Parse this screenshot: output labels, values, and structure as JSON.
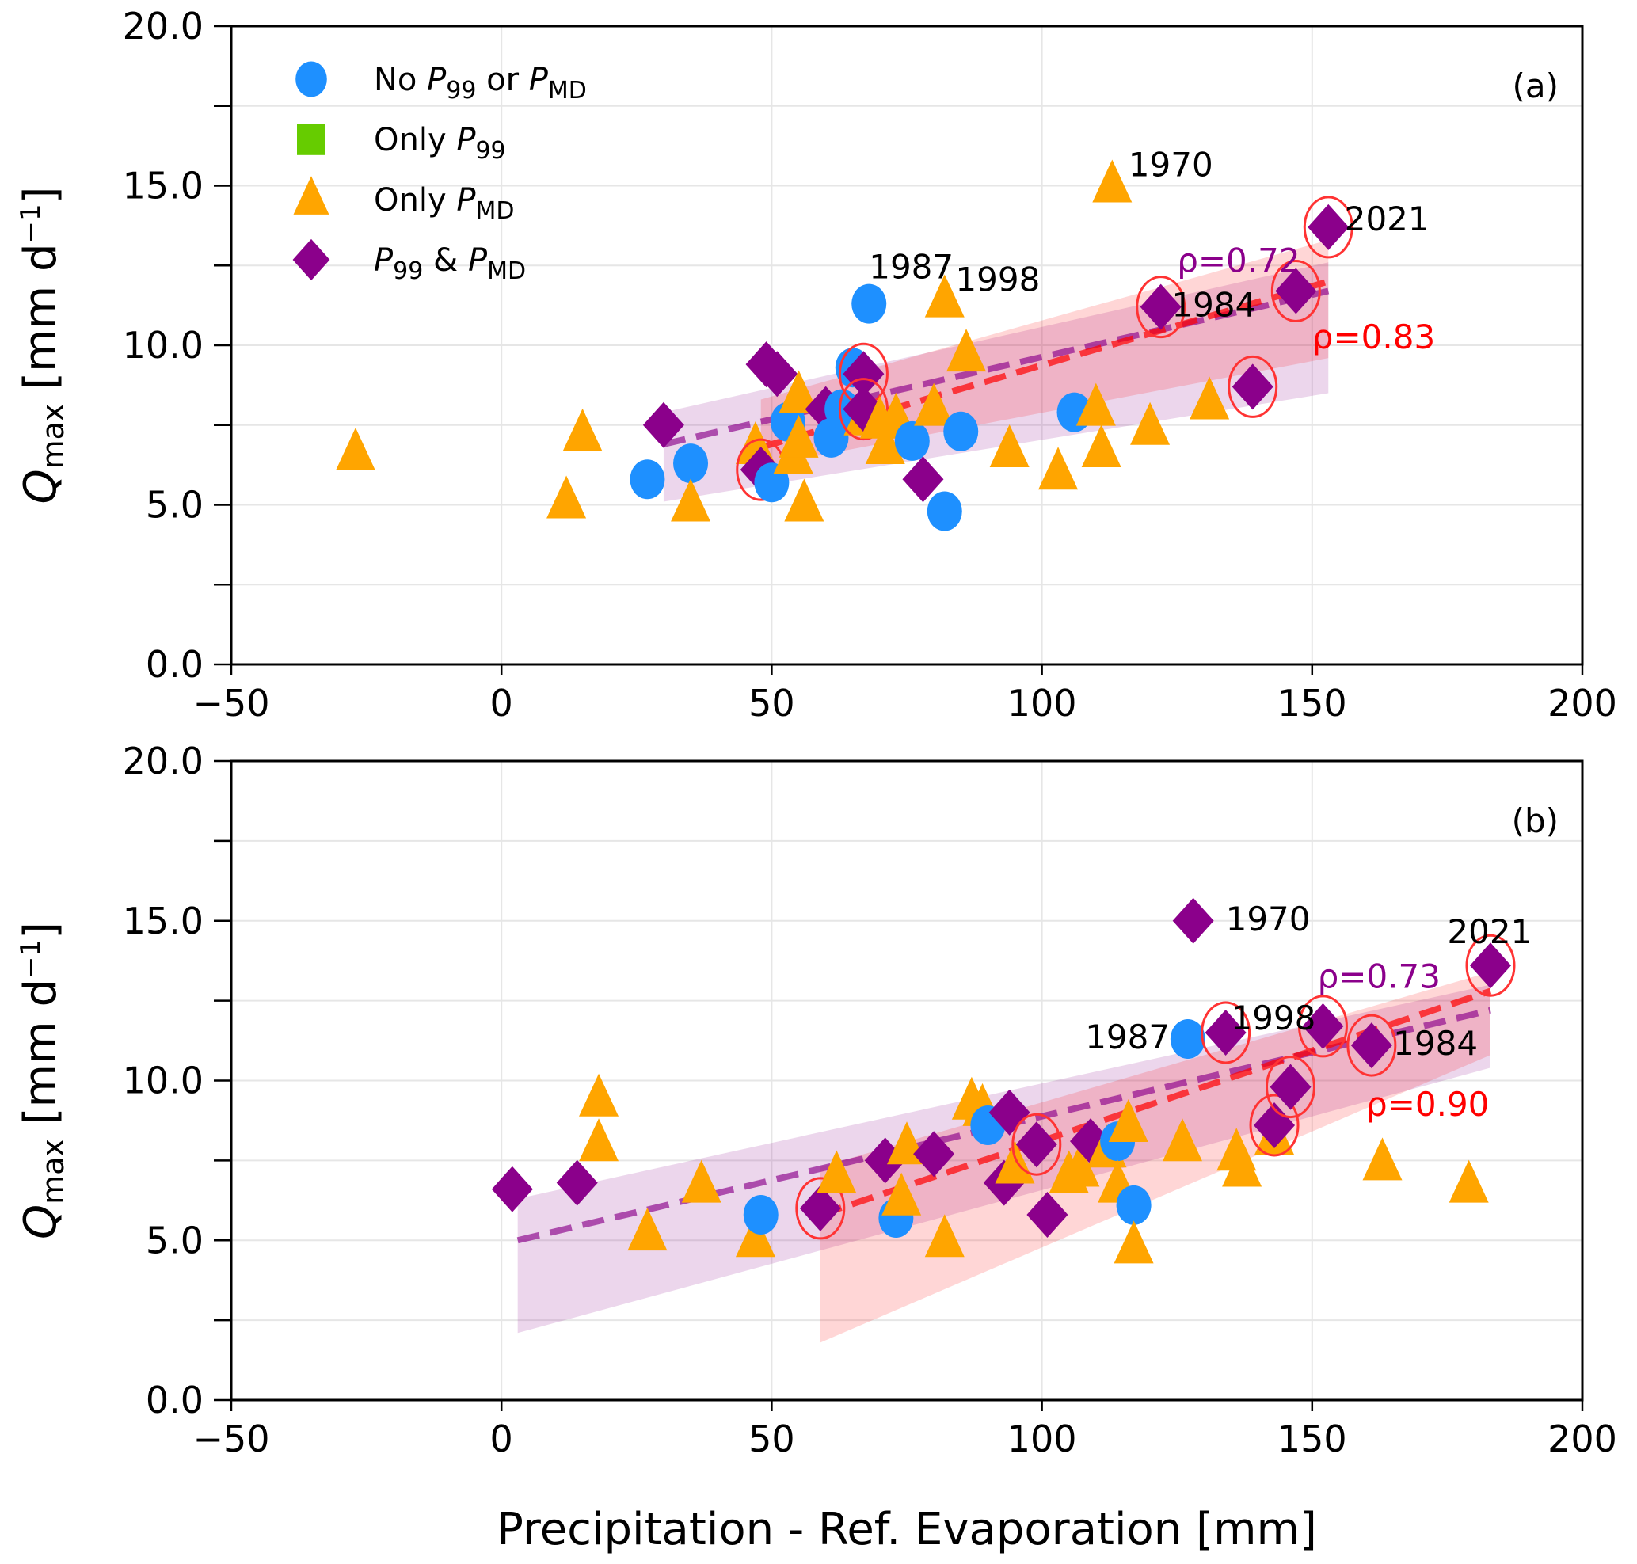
{
  "chart_data": {
    "type": "scatter",
    "xlabel": "Precipitation - Ref. Evaporation [mm]",
    "ylabel": "Q_max [mm d^-1]",
    "xlim": [
      -50,
      200
    ],
    "ylim": [
      0,
      20
    ],
    "xticks": [
      "−50",
      "0",
      "50",
      "100",
      "150",
      "200"
    ],
    "xtick_values": [
      -50,
      0,
      50,
      100,
      150,
      200
    ],
    "yticks": [
      "0.0",
      "5.0",
      "10.0",
      "15.0",
      "20.0"
    ],
    "ytick_values": [
      0,
      5,
      10,
      15,
      20
    ],
    "yminor_values": [
      2.5,
      7.5,
      12.5,
      17.5
    ],
    "grid": true,
    "legend": {
      "placement": "top-left",
      "entries": [
        {
          "key": "none",
          "marker": "circle",
          "color": "#1e90ff",
          "text": "No ",
          "sym1": "P",
          "sub1": "99",
          "mid": " or ",
          "sym2": "P",
          "sub2": "MD"
        },
        {
          "key": "p99",
          "marker": "square",
          "color": "#66cc00",
          "text": "Only ",
          "sym1": "P",
          "sub1": "99",
          "mid": "",
          "sym2": "",
          "sub2": ""
        },
        {
          "key": "pmd",
          "marker": "triangle",
          "color": "#ffa500",
          "text": "Only ",
          "sym1": "P",
          "sub1": "MD",
          "mid": "",
          "sym2": "",
          "sub2": ""
        },
        {
          "key": "both",
          "marker": "diamond",
          "color": "#8b008b",
          "text": "",
          "sym1": "P",
          "sub1": "99",
          "mid": " & ",
          "sym2": "P",
          "sub2": "MD"
        }
      ]
    },
    "colors": {
      "all_fit": "#8b008b",
      "extreme_fit": "#ff0000",
      "highlight_ring": "#ff3333"
    },
    "panels": [
      {
        "label": "(a)",
        "rho_all": "ρ=0.72",
        "rho_extreme": "ρ=0.83",
        "fit_all": {
          "x": [
            30,
            153
          ],
          "y": [
            6.9,
            11.7
          ],
          "band_lo": [
            5.1,
            8.5
          ],
          "band_hi": [
            7.9,
            12.6
          ]
        },
        "fit_extreme": {
          "x": [
            48,
            153
          ],
          "y": [
            6.8,
            12.0
          ],
          "band_lo": [
            6.2,
            9.6
          ],
          "band_hi": [
            8.3,
            13.3
          ]
        },
        "points": [
          {
            "g": "pmd",
            "x": -27,
            "y": 6.6
          },
          {
            "g": "pmd",
            "x": 12,
            "y": 5.1
          },
          {
            "g": "pmd",
            "x": 15,
            "y": 7.2
          },
          {
            "g": "none",
            "x": 27,
            "y": 5.8
          },
          {
            "g": "both",
            "x": 30,
            "y": 7.5
          },
          {
            "g": "none",
            "x": 35,
            "y": 6.3
          },
          {
            "g": "pmd",
            "x": 35,
            "y": 5.0
          },
          {
            "g": "pmd",
            "x": 47,
            "y": 6.8
          },
          {
            "g": "both",
            "x": 48,
            "y": 6.1,
            "ring": true
          },
          {
            "g": "none",
            "x": 50,
            "y": 5.7
          },
          {
            "g": "both",
            "x": 49,
            "y": 9.4
          },
          {
            "g": "both",
            "x": 51,
            "y": 9.1
          },
          {
            "g": "none",
            "x": 53,
            "y": 7.6
          },
          {
            "g": "pmd",
            "x": 54,
            "y": 6.5
          },
          {
            "g": "pmd",
            "x": 55,
            "y": 8.4
          },
          {
            "g": "pmd",
            "x": 55,
            "y": 7.0
          },
          {
            "g": "pmd",
            "x": 56,
            "y": 5.0
          },
          {
            "g": "both",
            "x": 60,
            "y": 8.0
          },
          {
            "g": "none",
            "x": 61,
            "y": 7.1
          },
          {
            "g": "none",
            "x": 63,
            "y": 8.0
          },
          {
            "g": "none",
            "x": 65,
            "y": 9.3
          },
          {
            "g": "none",
            "x": 68,
            "y": 11.3
          },
          {
            "g": "pmd",
            "x": 67,
            "y": 7.7
          },
          {
            "g": "both",
            "x": 67,
            "y": 9.1,
            "ring": true
          },
          {
            "g": "both",
            "x": 67,
            "y": 8.0,
            "ring": true
          },
          {
            "g": "pmd",
            "x": 70,
            "y": 7.6
          },
          {
            "g": "pmd",
            "x": 71,
            "y": 6.8
          },
          {
            "g": "pmd",
            "x": 73,
            "y": 7.7
          },
          {
            "g": "none",
            "x": 76,
            "y": 7.0
          },
          {
            "g": "both",
            "x": 78,
            "y": 5.8
          },
          {
            "g": "pmd",
            "x": 80,
            "y": 8.0
          },
          {
            "g": "pmd",
            "x": 82,
            "y": 11.4
          },
          {
            "g": "none",
            "x": 82,
            "y": 4.8
          },
          {
            "g": "none",
            "x": 85,
            "y": 7.3
          },
          {
            "g": "pmd",
            "x": 86,
            "y": 9.7
          },
          {
            "g": "pmd",
            "x": 94,
            "y": 6.7
          },
          {
            "g": "pmd",
            "x": 103,
            "y": 6.0
          },
          {
            "g": "none",
            "x": 106,
            "y": 7.9
          },
          {
            "g": "pmd",
            "x": 110,
            "y": 8.0
          },
          {
            "g": "pmd",
            "x": 111,
            "y": 6.7
          },
          {
            "g": "pmd",
            "x": 113,
            "y": 15.0
          },
          {
            "g": "pmd",
            "x": 120,
            "y": 7.4
          },
          {
            "g": "both",
            "x": 122,
            "y": 11.2,
            "ring": true
          },
          {
            "g": "pmd",
            "x": 131,
            "y": 8.2
          },
          {
            "g": "both",
            "x": 139,
            "y": 8.7,
            "ring": true
          },
          {
            "g": "both",
            "x": 147,
            "y": 11.7,
            "ring": true
          },
          {
            "g": "both",
            "x": 153,
            "y": 13.7,
            "ring": true
          }
        ],
        "labels": [
          {
            "text": "1970",
            "x": 116,
            "y": 15.3
          },
          {
            "text": "2021",
            "x": 156,
            "y": 13.6
          },
          {
            "text": "1987",
            "x": 68,
            "y": 12.1
          },
          {
            "text": "1998",
            "x": 84,
            "y": 11.7
          },
          {
            "text": "1984",
            "x": 124,
            "y": 10.9
          }
        ],
        "rho_all_pos": [
          125,
          12.3
        ],
        "rho_extreme_pos": [
          150,
          9.9
        ]
      },
      {
        "label": "(b)",
        "rho_all": "ρ=0.73",
        "rho_extreme": "ρ=0.90",
        "fit_all": {
          "x": [
            3,
            183
          ],
          "y": [
            5.0,
            12.2
          ],
          "band_lo": [
            2.1,
            10.4
          ],
          "band_hi": [
            6.3,
            13.0
          ]
        },
        "fit_extreme": {
          "x": [
            59,
            183
          ],
          "y": [
            5.8,
            12.8
          ],
          "band_lo": [
            1.8,
            10.8
          ],
          "band_hi": [
            7.3,
            13.4
          ]
        },
        "points": [
          {
            "g": "both",
            "x": 2,
            "y": 6.6
          },
          {
            "g": "both",
            "x": 14,
            "y": 6.8
          },
          {
            "g": "pmd",
            "x": 18,
            "y": 9.4
          },
          {
            "g": "pmd",
            "x": 18,
            "y": 8.0
          },
          {
            "g": "pmd",
            "x": 27,
            "y": 5.2
          },
          {
            "g": "pmd",
            "x": 37,
            "y": 6.7
          },
          {
            "g": "pmd",
            "x": 47,
            "y": 5.0
          },
          {
            "g": "none",
            "x": 48,
            "y": 5.8
          },
          {
            "g": "both",
            "x": 59,
            "y": 6.0,
            "ring": true
          },
          {
            "g": "pmd",
            "x": 62,
            "y": 7.0
          },
          {
            "g": "both",
            "x": 71,
            "y": 7.5
          },
          {
            "g": "none",
            "x": 73,
            "y": 5.7
          },
          {
            "g": "pmd",
            "x": 74,
            "y": 6.3
          },
          {
            "g": "pmd",
            "x": 75,
            "y": 7.9
          },
          {
            "g": "both",
            "x": 80,
            "y": 7.7
          },
          {
            "g": "pmd",
            "x": 82,
            "y": 5.0
          },
          {
            "g": "pmd",
            "x": 87,
            "y": 9.3
          },
          {
            "g": "pmd",
            "x": 89,
            "y": 9.1
          },
          {
            "g": "none",
            "x": 90,
            "y": 8.6
          },
          {
            "g": "both",
            "x": 93,
            "y": 6.8
          },
          {
            "g": "both",
            "x": 94,
            "y": 9.0
          },
          {
            "g": "pmd",
            "x": 95,
            "y": 7.3
          },
          {
            "g": "both",
            "x": 99,
            "y": 8.0,
            "ring": true
          },
          {
            "g": "both",
            "x": 101,
            "y": 5.8
          },
          {
            "g": "pmd",
            "x": 105,
            "y": 7.0
          },
          {
            "g": "pmd",
            "x": 107,
            "y": 7.2
          },
          {
            "g": "both",
            "x": 109,
            "y": 8.1
          },
          {
            "g": "pmd",
            "x": 112,
            "y": 7.8
          },
          {
            "g": "none",
            "x": 114,
            "y": 8.1
          },
          {
            "g": "pmd",
            "x": 114,
            "y": 6.7
          },
          {
            "g": "pmd",
            "x": 116,
            "y": 8.6
          },
          {
            "g": "none",
            "x": 117,
            "y": 6.1
          },
          {
            "g": "pmd",
            "x": 117,
            "y": 4.8
          },
          {
            "g": "pmd",
            "x": 126,
            "y": 8.0
          },
          {
            "g": "none",
            "x": 127,
            "y": 11.3
          },
          {
            "g": "both",
            "x": 128,
            "y": 15.0
          },
          {
            "g": "both",
            "x": 134,
            "y": 11.5,
            "ring": true
          },
          {
            "g": "pmd",
            "x": 136,
            "y": 7.7
          },
          {
            "g": "pmd",
            "x": 137,
            "y": 7.2
          },
          {
            "g": "pmd",
            "x": 143,
            "y": 8.2
          },
          {
            "g": "both",
            "x": 143,
            "y": 8.6,
            "ring": true
          },
          {
            "g": "both",
            "x": 146,
            "y": 9.8,
            "ring": true
          },
          {
            "g": "both",
            "x": 152,
            "y": 11.7,
            "ring": true
          },
          {
            "g": "both",
            "x": 161,
            "y": 11.1,
            "ring": true
          },
          {
            "g": "pmd",
            "x": 163,
            "y": 7.4
          },
          {
            "g": "pmd",
            "x": 179,
            "y": 6.7
          },
          {
            "g": "both",
            "x": 183,
            "y": 13.6,
            "ring": true
          }
        ],
        "labels": [
          {
            "text": "1970",
            "x": 134,
            "y": 14.7
          },
          {
            "text": "2021",
            "x": 175,
            "y": 14.3
          },
          {
            "text": "1987",
            "x": 108,
            "y": 11.0
          },
          {
            "text": "1998",
            "x": 135,
            "y": 11.6
          },
          {
            "text": "1984",
            "x": 165,
            "y": 10.8
          }
        ],
        "rho_all_pos": [
          151,
          12.9
        ],
        "rho_extreme_pos": [
          160,
          8.9
        ]
      }
    ]
  }
}
